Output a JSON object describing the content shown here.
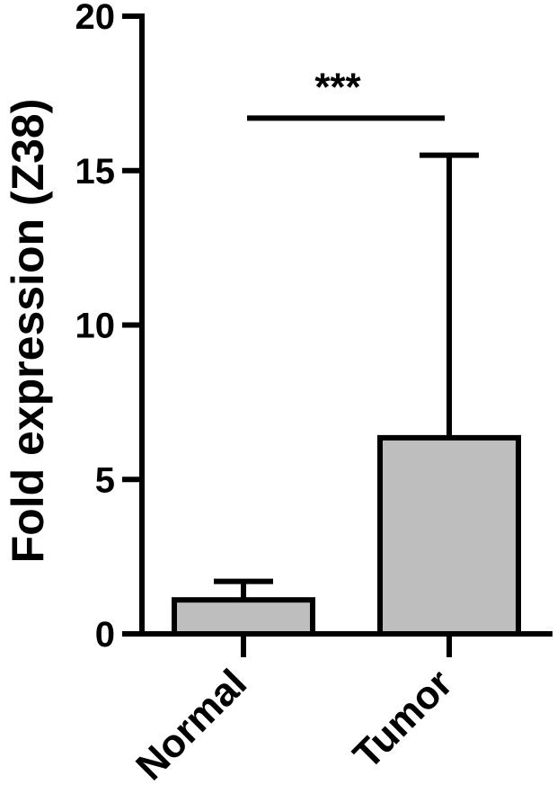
{
  "chart_data": {
    "type": "bar",
    "title": "",
    "xlabel": "",
    "ylabel": "Fold expression (Z38)",
    "ylim": [
      0,
      20
    ],
    "yticks": [
      0,
      5,
      10,
      15,
      20
    ],
    "categories": [
      "Normal",
      "Tumor"
    ],
    "values": [
      1.1,
      6.35
    ],
    "error_upper": [
      1.7,
      15.5
    ],
    "bar_color": "#bebebe",
    "significance": {
      "between": [
        "Normal",
        "Tumor"
      ],
      "label": "***",
      "level": 16.7
    },
    "grid": false,
    "legend": "none"
  }
}
